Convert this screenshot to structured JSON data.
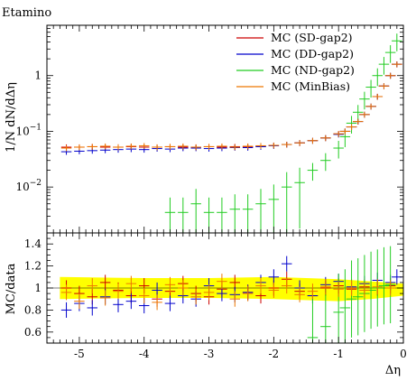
{
  "chart_data": [
    {
      "type": "scatter",
      "title": "Etamino",
      "xlabel": "",
      "ylabel": "1/N dN/dΔη",
      "yscale": "log",
      "xlim": [
        -5.5,
        0
      ],
      "ylim": [
        0.0015,
        8
      ],
      "grid": false,
      "legend_position": "top-right",
      "x_tick_labels": [],
      "y_tick_labels": {
        "ticks": [
          0.01,
          0.1,
          1
        ],
        "labels": [
          "10^-2",
          "10^-1",
          "1"
        ]
      },
      "series": [
        {
          "name": "MC (SD-gap2)",
          "color": "#cc0000",
          "x": [
            -5.2,
            -5.0,
            -4.8,
            -4.6,
            -4.4,
            -4.2,
            -4.0,
            -3.8,
            -3.6,
            -3.4,
            -3.2,
            -3.0,
            -2.8,
            -2.6,
            -2.4,
            -2.2,
            -2.0,
            -1.8,
            -1.6,
            -1.4,
            -1.2,
            -1.0,
            -0.9,
            -0.8,
            -0.7,
            -0.6,
            -0.5,
            -0.4,
            -0.3,
            -0.2,
            -0.1
          ],
          "y": [
            0.052,
            0.052,
            0.053,
            0.052,
            0.052,
            0.053,
            0.052,
            0.052,
            0.053,
            0.052,
            0.052,
            0.053,
            0.052,
            0.053,
            0.053,
            0.054,
            0.056,
            0.058,
            0.062,
            0.068,
            0.076,
            0.09,
            0.1,
            0.12,
            0.15,
            0.2,
            0.28,
            0.42,
            0.65,
            1.0,
            1.6
          ]
        },
        {
          "name": "MC (DD-gap2)",
          "color": "#0000cc",
          "x": [
            -5.2,
            -5.0,
            -4.8,
            -4.6,
            -4.4,
            -4.2,
            -4.0,
            -3.8,
            -3.6,
            -3.4,
            -3.2,
            -3.0,
            -2.8,
            -2.6,
            -2.4,
            -2.2,
            -2.0,
            -1.8,
            -1.6,
            -1.4,
            -1.2,
            -1.0,
            -0.9,
            -0.8,
            -0.7,
            -0.6,
            -0.5,
            -0.4,
            -0.3,
            -0.2,
            -0.1
          ],
          "y": [
            0.043,
            0.044,
            0.045,
            0.046,
            0.047,
            0.048,
            0.047,
            0.049,
            0.048,
            0.05,
            0.05,
            0.049,
            0.05,
            0.051,
            0.051,
            0.053,
            0.055,
            0.058,
            0.062,
            0.068,
            0.076,
            0.088,
            0.1,
            0.12,
            0.15,
            0.2,
            0.28,
            0.42,
            0.65,
            1.0,
            1.6
          ]
        },
        {
          "name": "MC (ND-gap2)",
          "color": "#22cc22",
          "x": [
            -3.6,
            -3.4,
            -3.2,
            -3.0,
            -2.8,
            -2.6,
            -2.4,
            -2.2,
            -2.0,
            -1.8,
            -1.6,
            -1.4,
            -1.2,
            -1.0,
            -0.9,
            -0.8,
            -0.7,
            -0.6,
            -0.5,
            -0.4,
            -0.3,
            -0.2,
            -0.1
          ],
          "y": [
            0.0035,
            0.0035,
            0.005,
            0.0035,
            0.0035,
            0.004,
            0.004,
            0.005,
            0.006,
            0.01,
            0.012,
            0.02,
            0.03,
            0.05,
            0.08,
            0.14,
            0.22,
            0.38,
            0.62,
            1.0,
            1.6,
            2.6,
            4.2
          ]
        },
        {
          "name": "MC (MinBias)",
          "color": "#ee7700",
          "x": [
            -5.2,
            -5.0,
            -4.8,
            -4.6,
            -4.4,
            -4.2,
            -4.0,
            -3.8,
            -3.6,
            -3.4,
            -3.2,
            -3.0,
            -2.8,
            -2.6,
            -2.4,
            -2.2,
            -2.0,
            -1.8,
            -1.6,
            -1.4,
            -1.2,
            -1.0,
            -0.9,
            -0.8,
            -0.7,
            -0.6,
            -0.5,
            -0.4,
            -0.3,
            -0.2,
            -0.1
          ],
          "y": [
            0.05,
            0.052,
            0.053,
            0.054,
            0.052,
            0.054,
            0.055,
            0.052,
            0.053,
            0.054,
            0.052,
            0.053,
            0.054,
            0.052,
            0.054,
            0.055,
            0.056,
            0.058,
            0.062,
            0.068,
            0.076,
            0.09,
            0.1,
            0.12,
            0.15,
            0.2,
            0.28,
            0.42,
            0.65,
            1.0,
            1.6
          ]
        }
      ]
    },
    {
      "type": "scatter",
      "title": "",
      "xlabel": "Δη",
      "ylabel": "MC/data",
      "xlim": [
        -5.5,
        0
      ],
      "ylim": [
        0.5,
        1.5
      ],
      "grid": false,
      "x_tick_labels": {
        "ticks": [
          -5,
          -4,
          -3,
          -2,
          -1,
          0
        ],
        "labels": [
          "-5",
          "-4",
          "-3",
          "-2",
          "-1",
          "0"
        ]
      },
      "y_tick_labels": {
        "ticks": [
          0.6,
          0.8,
          1,
          1.2,
          1.4
        ],
        "labels": [
          "0.6",
          "0.8",
          "1",
          "1.2",
          "1.4"
        ]
      },
      "uncertainty_band": {
        "color": "#ffff00",
        "x": [
          -5.3,
          -4.0,
          -3.0,
          -2.0,
          -1.0,
          -0.5,
          0
        ],
        "low": [
          0.9,
          0.91,
          0.91,
          0.9,
          0.88,
          0.9,
          0.93
        ],
        "high": [
          1.1,
          1.09,
          1.09,
          1.1,
          1.08,
          1.06,
          1.04
        ]
      },
      "series": [
        {
          "name": "MC (SD-gap2)",
          "color": "#cc0000",
          "x": [
            -5.2,
            -5.0,
            -4.8,
            -4.6,
            -4.4,
            -4.2,
            -4.0,
            -3.8,
            -3.6,
            -3.4,
            -3.2,
            -3.0,
            -2.8,
            -2.6,
            -2.4,
            -2.2,
            -2.0,
            -1.8,
            -1.6,
            -1.4,
            -1.2,
            -1.0,
            -0.8,
            -0.6,
            -0.4,
            -0.2
          ],
          "y": [
            1.0,
            0.95,
            0.92,
            1.05,
            0.98,
            0.93,
            1.02,
            0.9,
            0.97,
            1.04,
            0.95,
            0.92,
            0.99,
            1.05,
            0.96,
            0.93,
            1.0,
            1.08,
            0.97,
            0.93,
            1.0,
            1.02,
            0.99,
            1.01,
            1.0,
            1.02
          ]
        },
        {
          "name": "MC (DD-gap2)",
          "color": "#0000cc",
          "x": [
            -5.2,
            -5.0,
            -4.8,
            -4.6,
            -4.4,
            -4.2,
            -4.0,
            -3.8,
            -3.6,
            -3.4,
            -3.2,
            -3.0,
            -2.8,
            -2.6,
            -2.4,
            -2.2,
            -2.0,
            -1.8,
            -1.6,
            -1.4,
            -1.2,
            -1.0,
            -0.8,
            -0.6,
            -0.4,
            -0.2,
            -0.1
          ],
          "y": [
            0.8,
            0.86,
            0.82,
            0.92,
            0.85,
            0.88,
            0.84,
            0.98,
            0.86,
            0.93,
            0.9,
            1.02,
            0.95,
            0.94,
            0.96,
            1.05,
            1.1,
            1.22,
            1.0,
            0.93,
            1.03,
            1.06,
            1.01,
            1.04,
            1.07,
            1.05,
            1.1
          ]
        },
        {
          "name": "MC (ND-gap2)",
          "color": "#22cc22",
          "x": [
            -1.4,
            -1.2,
            -1.0,
            -0.9,
            -0.8,
            -0.7,
            -0.6,
            -0.5,
            -0.4,
            -0.3,
            -0.2
          ],
          "y": [
            0.55,
            0.65,
            0.78,
            0.82,
            0.9,
            0.92,
            0.95,
            0.98,
            1.0,
            1.02,
            1.03
          ]
        },
        {
          "name": "MC (MinBias)",
          "color": "#ee7700",
          "x": [
            -5.2,
            -5.0,
            -4.8,
            -4.6,
            -4.4,
            -4.2,
            -4.0,
            -3.8,
            -3.6,
            -3.4,
            -3.2,
            -3.0,
            -2.8,
            -2.6,
            -2.4,
            -2.2,
            -2.0,
            -1.8,
            -1.6,
            -1.4,
            -1.2,
            -1.0,
            -0.8,
            -0.6,
            -0.4,
            -0.2
          ],
          "y": [
            0.96,
            0.88,
            1.02,
            0.91,
            0.97,
            1.04,
            0.93,
            0.87,
            1.03,
            1.0,
            0.92,
            0.96,
            1.06,
            0.9,
            0.95,
            1.02,
            0.98,
            1.02,
            0.94,
            0.97,
            1.01,
            0.99,
            1.0,
            0.98,
            1.01,
            1.0
          ]
        }
      ]
    }
  ]
}
